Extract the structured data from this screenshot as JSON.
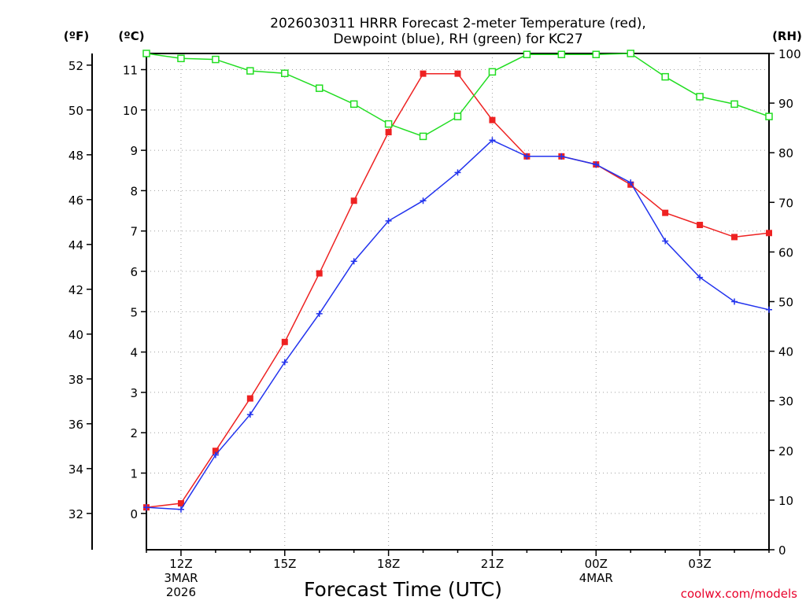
{
  "chart_data": {
    "type": "line",
    "title": [
      "2026030311 HRRR Forecast 2-meter Temperature (red),",
      "Dewpoint (blue), RH (green) for KC27"
    ],
    "xlabel": "Forecast Time (UTC)",
    "credit": "coolwx.com/models",
    "unit_labels": {
      "fahrenheit": "(ºF)",
      "celsius": "(ºC)",
      "rh": "(RH)"
    },
    "x": [
      11,
      12,
      13,
      14,
      15,
      16,
      17,
      18,
      19,
      20,
      21,
      22,
      23,
      24,
      25,
      26,
      27,
      28,
      29
    ],
    "xlim": [
      11,
      29
    ],
    "x_ticks": [
      {
        "x": 12,
        "label": "12Z",
        "sub": [
          "3MAR",
          "2026"
        ]
      },
      {
        "x": 15,
        "label": "15Z",
        "sub": []
      },
      {
        "x": 18,
        "label": "18Z",
        "sub": []
      },
      {
        "x": 21,
        "label": "21Z",
        "sub": []
      },
      {
        "x": 24,
        "label": "00Z",
        "sub": [
          "4MAR"
        ]
      },
      {
        "x": 27,
        "label": "03Z",
        "sub": []
      }
    ],
    "ylim_c": [
      -0.9,
      11.4
    ],
    "yticks_c": [
      "0",
      "1",
      "2",
      "3",
      "4",
      "5",
      "6",
      "7",
      "8",
      "9",
      "10",
      "11"
    ],
    "yticks_f": [
      "32",
      "34",
      "36",
      "38",
      "40",
      "42",
      "44",
      "46",
      "48",
      "50",
      "52"
    ],
    "ylim_rh": [
      0,
      100
    ],
    "yticks_rh": [
      "0",
      "10",
      "20",
      "30",
      "40",
      "50",
      "60",
      "70",
      "80",
      "90",
      "100"
    ],
    "series": [
      {
        "name": "Temperature",
        "unit": "C",
        "color": "#ee2222",
        "marker": "filled-square",
        "values": [
          0.15,
          0.25,
          1.55,
          2.85,
          4.25,
          5.95,
          7.75,
          9.45,
          10.9,
          10.9,
          9.75,
          8.85,
          8.85,
          8.65,
          8.15,
          7.45,
          7.15,
          6.85,
          6.95
        ]
      },
      {
        "name": "Dewpoint",
        "unit": "C",
        "color": "#2233ee",
        "marker": "plus",
        "values": [
          0.15,
          0.1,
          1.45,
          2.45,
          3.75,
          4.95,
          6.25,
          7.25,
          7.75,
          8.45,
          9.25,
          8.85,
          8.85,
          8.65,
          8.2,
          6.75,
          5.85,
          5.25,
          5.05
        ]
      },
      {
        "name": "RH",
        "unit": "%",
        "color": "#22dd22",
        "marker": "open-square",
        "values": [
          100,
          99,
          98.8,
          96.5,
          96,
          93,
          89.8,
          85.8,
          83.3,
          87.3,
          96.3,
          99.8,
          99.8,
          99.8,
          100,
          95.3,
          91.3,
          89.8,
          87.3
        ]
      }
    ]
  }
}
